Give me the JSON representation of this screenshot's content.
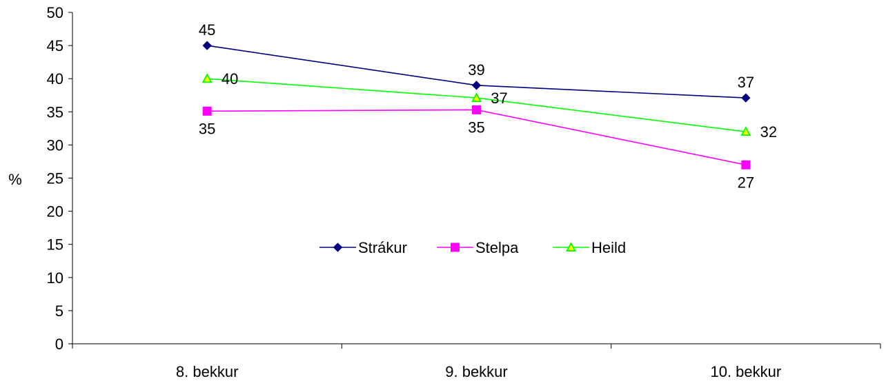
{
  "chart_data": {
    "type": "line",
    "categories": [
      "8. bekkur",
      "9. bekkur",
      "10. bekkur"
    ],
    "ylabel": "%",
    "ylim": [
      0,
      50
    ],
    "yticks": [
      0,
      5,
      10,
      15,
      20,
      25,
      30,
      35,
      40,
      45,
      50
    ],
    "grid": false,
    "legend": "center",
    "series": [
      {
        "name": "Strákur",
        "values": [
          45,
          39,
          37.1
        ],
        "labels": [
          "45",
          "39",
          "37"
        ],
        "color": "#000080",
        "marker": "diamond"
      },
      {
        "name": "Stelpa",
        "values": [
          35.1,
          35.3,
          27
        ],
        "labels": [
          "35",
          "35",
          "27"
        ],
        "color": "#ff00ff",
        "marker": "square"
      },
      {
        "name": "Heild",
        "values": [
          40,
          37.1,
          32
        ],
        "labels": [
          "40",
          "37",
          "32"
        ],
        "color": "#00ff00",
        "marker": "triangle"
      }
    ]
  }
}
